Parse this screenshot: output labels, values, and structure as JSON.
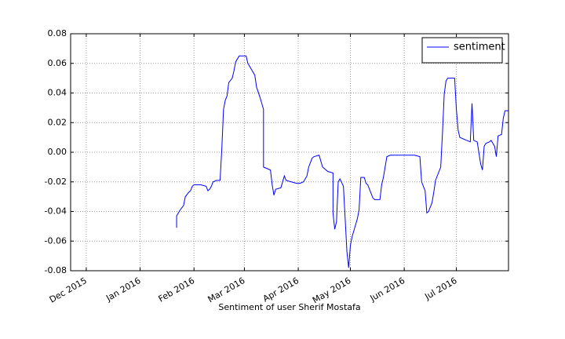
{
  "chart_data": {
    "type": "line",
    "xlabel": "Sentiment of user Sherif Mostafa",
    "x": [
      735985,
      735985,
      735987,
      735989,
      735990,
      735992,
      735993,
      735994,
      735995,
      735999,
      736002,
      736003,
      736004,
      736005,
      736006,
      736008,
      736010,
      736011,
      736012,
      736013,
      736014,
      736015,
      736017,
      736018,
      736019,
      736021,
      736025,
      736026,
      736028,
      736030,
      736031,
      736033,
      736035,
      736035,
      736037,
      736039,
      736040,
      736041,
      736042,
      736045,
      736047,
      736048,
      736051,
      736054,
      736056,
      736058,
      736060,
      736061,
      736063,
      736064,
      736067,
      736068,
      736069,
      736072,
      736075,
      736075,
      736076,
      736077,
      736078,
      736079,
      736081,
      736082,
      736083,
      736084,
      736085,
      736086,
      736089,
      736090,
      736091,
      736093,
      736094,
      736095,
      736098,
      736099,
      736102,
      736103,
      736104,
      736105,
      736106,
      736108,
      736119,
      736122,
      736125,
      736126,
      736128,
      736129,
      736130,
      736132,
      736133,
      736134,
      736137,
      736138,
      736139,
      736140,
      736141,
      736145,
      736146,
      736147,
      736148,
      736152,
      736154,
      736155,
      736156,
      736158,
      736160,
      736161,
      736162,
      736163,
      736165,
      736166,
      736168,
      736169,
      736170,
      736172,
      736173,
      736174,
      736176
    ],
    "series": [
      {
        "name": "sentiment",
        "color": "#0000ff",
        "values": [
          -0.051,
          -0.043,
          -0.039,
          -0.036,
          -0.03,
          -0.027,
          -0.026,
          -0.023,
          -0.022,
          -0.022,
          -0.023,
          -0.026,
          -0.025,
          -0.023,
          -0.02,
          -0.019,
          -0.019,
          0.002,
          0.029,
          0.035,
          0.038,
          0.047,
          0.05,
          0.055,
          0.061,
          0.065,
          0.065,
          0.06,
          0.056,
          0.052,
          0.044,
          0.037,
          0.029,
          -0.01,
          -0.011,
          -0.012,
          -0.022,
          -0.029,
          -0.025,
          -0.024,
          -0.016,
          -0.019,
          -0.02,
          -0.021,
          -0.021,
          -0.02,
          -0.016,
          -0.01,
          -0.004,
          -0.003,
          -0.002,
          -0.006,
          -0.01,
          -0.013,
          -0.014,
          -0.041,
          -0.052,
          -0.047,
          -0.02,
          -0.018,
          -0.023,
          -0.045,
          -0.067,
          -0.078,
          -0.063,
          -0.057,
          -0.045,
          -0.039,
          -0.017,
          -0.017,
          -0.021,
          -0.022,
          -0.031,
          -0.032,
          -0.032,
          -0.022,
          -0.017,
          -0.01,
          -0.003,
          -0.002,
          -0.002,
          -0.002,
          -0.003,
          -0.02,
          -0.026,
          -0.041,
          -0.04,
          -0.034,
          -0.027,
          -0.019,
          -0.01,
          0.013,
          0.039,
          0.048,
          0.05,
          0.05,
          0.029,
          0.015,
          0.01,
          0.008,
          0.007,
          0.033,
          0.008,
          0.007,
          -0.008,
          -0.012,
          0.004,
          0.006,
          0.007,
          0.008,
          0.004,
          -0.003,
          0.011,
          0.012,
          0.023,
          0.028,
          0.028
        ]
      }
    ],
    "xlim": [
      735924,
      736176
    ],
    "xticks": [
      {
        "value": 735933,
        "label": "Dec 2015"
      },
      {
        "value": 735964,
        "label": "Jan 2016"
      },
      {
        "value": 735995,
        "label": "Feb 2016"
      },
      {
        "value": 736024,
        "label": "Mar 2016"
      },
      {
        "value": 736055,
        "label": "Apr 2016"
      },
      {
        "value": 736085,
        "label": "May 2016"
      },
      {
        "value": 736116,
        "label": "Jun 2016"
      },
      {
        "value": 736146,
        "label": "Jul 2016"
      }
    ],
    "ylim": [
      -0.08,
      0.08
    ],
    "yticks": [
      -0.08,
      -0.06,
      -0.04,
      -0.02,
      {
        "value": 0,
        "label": "0.00"
      },
      0.02,
      0.04,
      0.06,
      0.08
    ],
    "grid": true,
    "legend": "upper right"
  }
}
